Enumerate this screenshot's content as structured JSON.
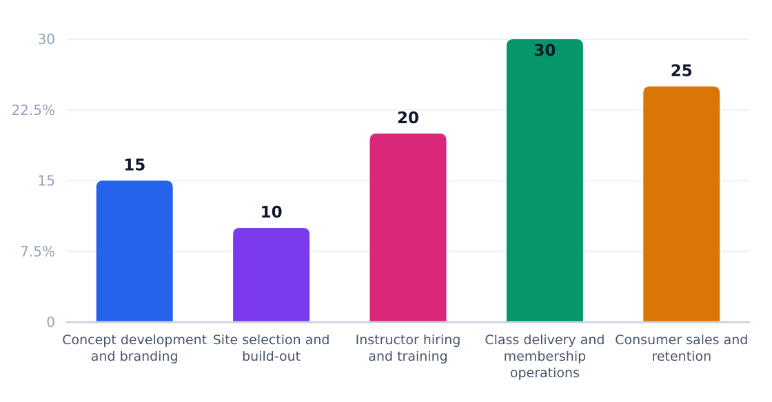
{
  "chart_data": {
    "type": "bar",
    "categories": [
      "Concept development and branding",
      "Site selection and build-out",
      "Instructor hiring and training",
      "Class delivery and membership operations",
      "Consumer sales and retention"
    ],
    "values": [
      15,
      10,
      20,
      30,
      25
    ],
    "colors": [
      "#2563eb",
      "#7c3aed",
      "#db2777",
      "#059669",
      "#d97706"
    ],
    "ylim": [
      0,
      30
    ],
    "yticks": [
      0,
      7.5,
      15,
      22.5,
      30
    ],
    "ytick_labels": [
      "0",
      "7.5%",
      "15",
      "22.5%",
      "30"
    ],
    "title": "",
    "xlabel": "",
    "ylabel": "",
    "grid": true,
    "legend": false
  }
}
